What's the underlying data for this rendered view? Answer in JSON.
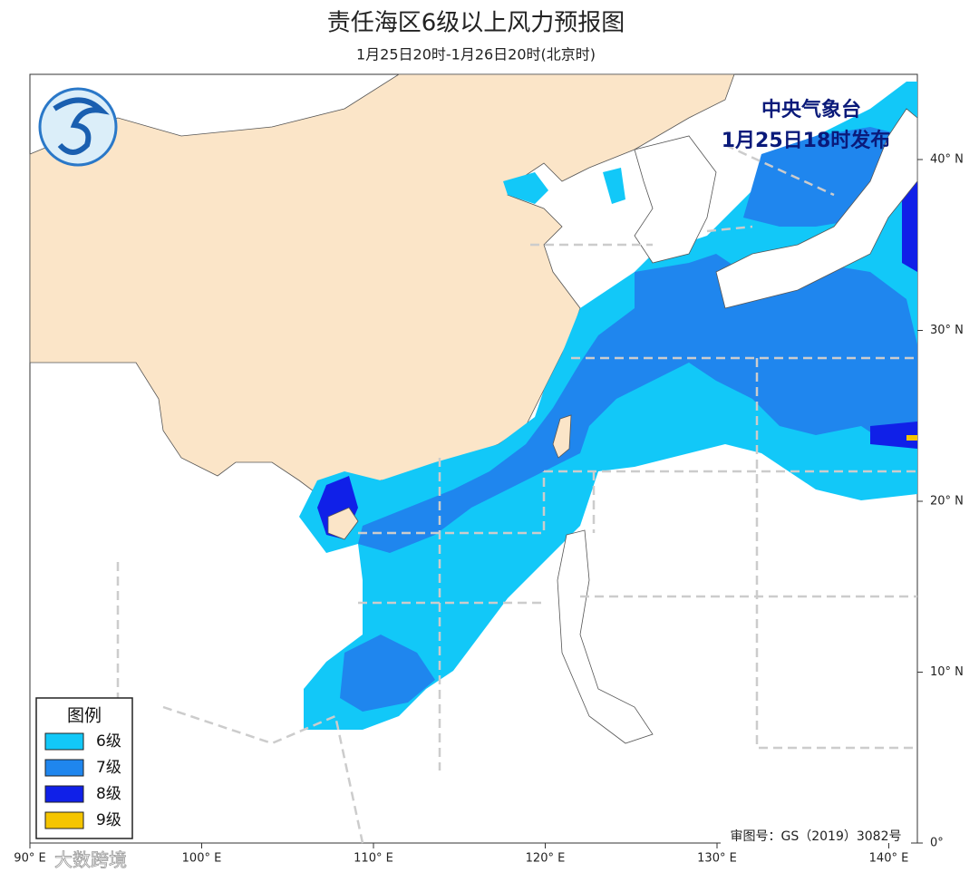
{
  "header": {
    "title": "责任海区6级以上风力预报图",
    "subtitle": "1月25日20时-1月26日20时(北京时)"
  },
  "issuer": {
    "agency": "中央气象台",
    "issued": "1月25日18时发布"
  },
  "lat_ticks": [
    {
      "value": 40,
      "label": "40° N"
    },
    {
      "value": 30,
      "label": "30° N"
    },
    {
      "value": 20,
      "label": "20° N"
    },
    {
      "value": 10,
      "label": "10° N"
    },
    {
      "value": 0,
      "label": "0°"
    }
  ],
  "lon_ticks": [
    {
      "value": 90,
      "label": "90° E"
    },
    {
      "value": 100,
      "label": "100° E"
    },
    {
      "value": 110,
      "label": "110° E"
    },
    {
      "value": 120,
      "label": "120° E"
    },
    {
      "value": 130,
      "label": "130° E"
    },
    {
      "value": 140,
      "label": "140° E"
    }
  ],
  "legend": {
    "title": "图例",
    "items": [
      {
        "label": "6级",
        "color": "#12c8f8"
      },
      {
        "label": "7级",
        "color": "#1f86ee"
      },
      {
        "label": "8级",
        "color": "#1020e8"
      },
      {
        "label": "9级",
        "color": "#f5c500"
      }
    ]
  },
  "footer": {
    "approval": "审图号：GS（2019）3082号",
    "watermark": "大数跨境"
  }
}
